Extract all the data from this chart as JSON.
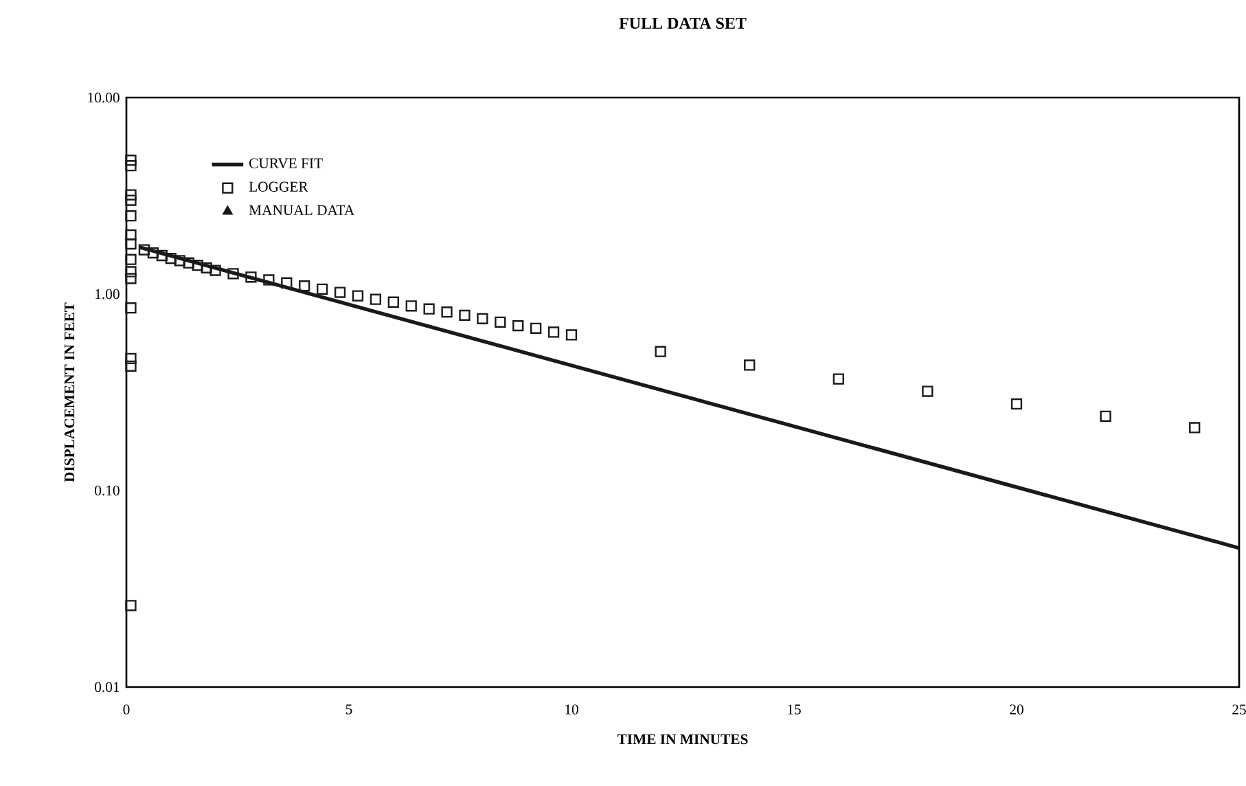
{
  "chart_data": {
    "type": "scatter",
    "title": "FULL DATA SET",
    "xlabel": "TIME IN MINUTES",
    "ylabel": "DISPLACEMENT IN FEET",
    "log": "y",
    "grid": false,
    "legend": "top left",
    "xlim": [
      0,
      25
    ],
    "xticks": [
      0,
      5,
      10,
      15,
      20,
      25
    ],
    "ylim": [
      0.01,
      10
    ],
    "yticks": [
      {
        "value": 0.01,
        "label": "0.01"
      },
      {
        "value": 0.1,
        "label": "0.10"
      },
      {
        "value": 1,
        "label": "1.00"
      },
      {
        "value": 10,
        "label": "10.00"
      }
    ],
    "series": [
      {
        "name": "CURVE FIT",
        "type": "line",
        "color": "#1a1a1a",
        "marker": "none",
        "line_style": "solid",
        "x": [
          0.3,
          25
        ],
        "values": [
          1.73,
          0.051
        ]
      },
      {
        "name": "LOGGER",
        "color": "#1a1a1a",
        "marker": "square",
        "x": [
          0.1,
          0.1,
          0.1,
          0.1,
          0.1,
          0.1,
          0.1,
          0.1,
          0.1,
          0.1,
          0.1,
          0.1,
          0.1,
          0.1,
          0.4,
          0.6,
          0.8,
          1.0,
          1.2,
          1.4,
          1.6,
          1.8,
          2.0,
          2.4,
          2.8,
          3.2,
          3.6,
          4.0,
          4.4,
          4.8,
          5.2,
          5.6,
          6.0,
          6.4,
          6.8,
          7.2,
          7.6,
          8.0,
          8.4,
          8.8,
          9.2,
          9.6,
          10.0,
          12,
          14,
          16,
          18,
          20,
          22,
          24
        ],
        "values": [
          4.8,
          4.5,
          3.2,
          3.0,
          2.5,
          2.0,
          1.8,
          1.5,
          1.3,
          1.2,
          0.85,
          0.47,
          0.43,
          0.026,
          1.68,
          1.62,
          1.57,
          1.52,
          1.48,
          1.44,
          1.4,
          1.36,
          1.32,
          1.27,
          1.22,
          1.18,
          1.14,
          1.1,
          1.06,
          1.02,
          0.98,
          0.94,
          0.91,
          0.87,
          0.84,
          0.81,
          0.78,
          0.75,
          0.72,
          0.69,
          0.67,
          0.64,
          0.62,
          0.51,
          0.435,
          0.37,
          0.32,
          0.276,
          0.239,
          0.209
        ]
      },
      {
        "name": "MANUAL DATA",
        "color": "#1a1a1a",
        "marker": "triangle"
      }
    ]
  }
}
